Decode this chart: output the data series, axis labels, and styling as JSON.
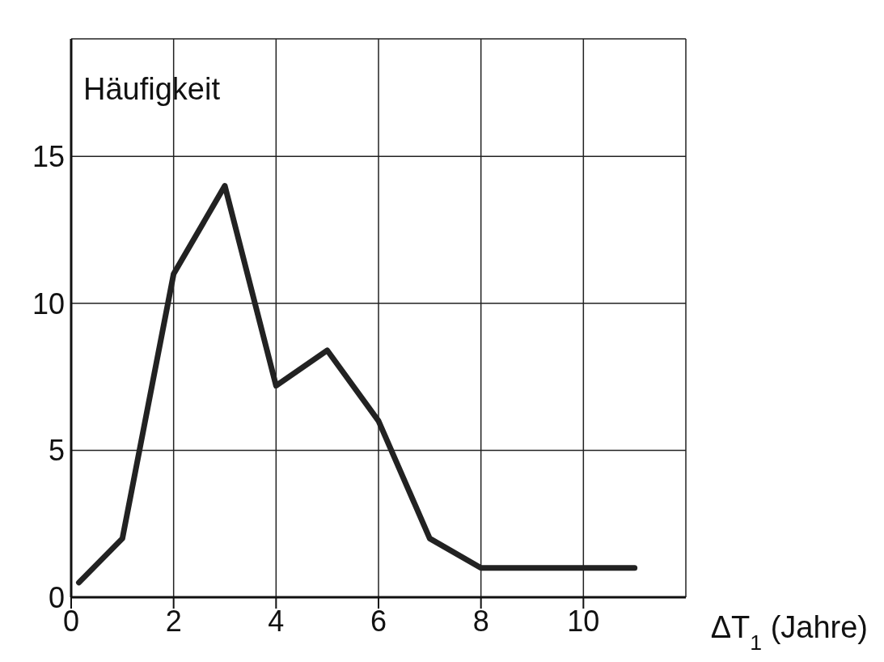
{
  "chart_data": {
    "type": "line",
    "ylabel": "Häufigkeit",
    "xlabel": "ΔT$_{1}$ (Jahre)",
    "x": [
      0.15,
      1,
      2,
      3,
      4,
      5,
      6,
      7,
      8,
      11
    ],
    "series": [
      {
        "color": "#222222",
        "values": [
          0.5,
          2,
          11,
          14,
          7.2,
          8.4,
          6,
          2,
          1,
          1
        ]
      }
    ],
    "xlim": [
      0,
      12
    ],
    "xticks": [
      0,
      2,
      4,
      6,
      8,
      10
    ],
    "ylim": [
      0,
      19
    ],
    "yticks": [
      0,
      5,
      10,
      15
    ],
    "grid": true,
    "marker": "none",
    "line_style": "solid"
  }
}
